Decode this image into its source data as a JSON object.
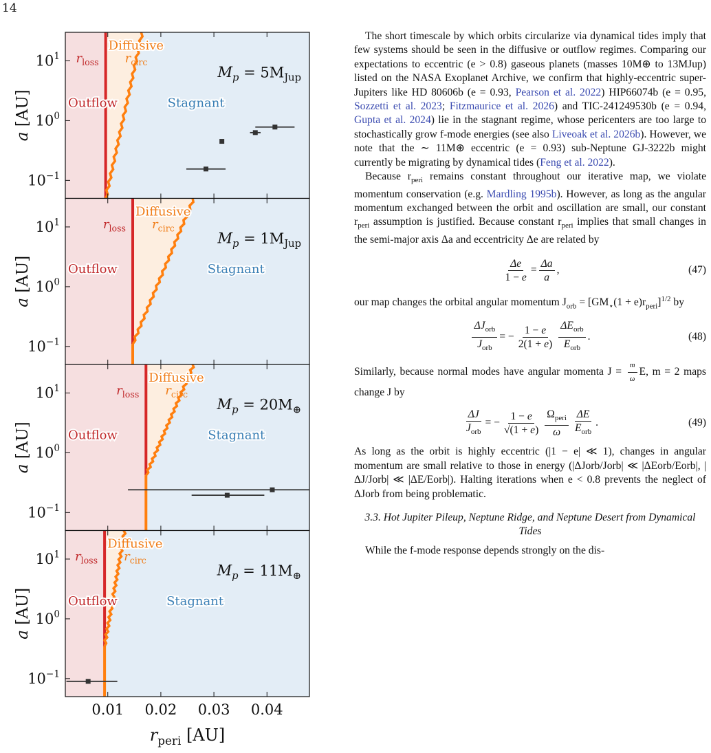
{
  "page_number": "14",
  "figure": {
    "panels": [
      {
        "mass_label": "M_p = 5M_Jup",
        "mass_text": "M",
        "mass_sub": "p",
        "mass_rhs": " = 5M",
        "mass_rhs_sub": "Jup",
        "rloss": 0.0096,
        "curve_start_a": 0.05,
        "curve_top_r": 0.0165,
        "points": [
          {
            "x": 0.0285,
            "y": 0.155,
            "xerr": [
              0.0248,
              0.0322
            ]
          },
          {
            "x": 0.0315,
            "y": 0.45,
            "xerr": null
          },
          {
            "x": 0.0378,
            "y": 0.63,
            "xerr": [
              0.0368,
              0.0388
            ]
          },
          {
            "x": 0.0415,
            "y": 0.78,
            "xerr": [
              0.0378,
              0.0452
            ]
          }
        ]
      },
      {
        "mass_label": "M_p = 1M_Jup",
        "mass_text": "M",
        "mass_sub": "p",
        "mass_rhs": " = 1M",
        "mass_rhs_sub": "Jup",
        "rloss": 0.0147,
        "curve_start_a": 0.11,
        "curve_top_r": 0.0262,
        "points": []
      },
      {
        "mass_label": "M_p = 20M_⊕",
        "mass_text": "M",
        "mass_sub": "p",
        "mass_rhs": " = 20M",
        "mass_rhs_sub": "⊕",
        "rloss": 0.0172,
        "curve_start_a": 0.42,
        "curve_top_r": 0.0262,
        "points": [
          {
            "x": 0.0325,
            "y": 0.195,
            "xerr": [
              0.0258,
              0.0395
            ]
          },
          {
            "x": 0.041,
            "y": 0.24,
            "xerr": [
              0.0138,
              0.048
            ]
          }
        ]
      },
      {
        "mass_label": "M_p = 11M_⊕",
        "mass_text": "M",
        "mass_sub": "p",
        "mass_rhs": " = 11M",
        "mass_rhs_sub": "⊕",
        "rloss": 0.0094,
        "curve_start_a": 0.35,
        "curve_top_r": 0.0132,
        "points": [
          {
            "x": 0.0063,
            "y": 0.09,
            "xerr": [
              0.0022,
              0.0118
            ]
          }
        ]
      }
    ],
    "region_labels": {
      "outflow": "Outflow",
      "stagnant": "Stagnant",
      "diffusive": "Diffusive",
      "rloss": "r",
      "rloss_sub": "loss",
      "rcirc": "r",
      "rcirc_sub": "circ"
    },
    "ylabel": "a [AU]",
    "ylabel_main": "a",
    "ylabel_unit": "[AU]",
    "xlabel_main": "r",
    "xlabel_sub": "peri",
    "xlabel_unit": "[AU]",
    "xticks": [
      "0.01",
      "0.02",
      "0.03",
      "0.04"
    ],
    "xtick_values": [
      0.01,
      0.02,
      0.03,
      0.04
    ],
    "yticks": [
      "10",
      "10",
      "10"
    ],
    "ytick_exps": [
      "1",
      "0",
      "−1"
    ],
    "yrange": [
      0.05,
      30
    ],
    "xrange": [
      0.002,
      0.048
    ],
    "colors": {
      "outflow": "#f6dfe0",
      "diffusive": "#fdeee0",
      "stagnant": "#e3edf6",
      "red": "#d62728",
      "orange": "#ff7f0e",
      "outflow_text": "#c0282a",
      "diffusive_text": "#f07d18",
      "stagnant_text": "#3a7fb5",
      "point": "#333333"
    }
  },
  "text": {
    "p1": "The short timescale by which orbits circularize via dynamical tides imply that few systems should be seen in the diffusive or outflow regimes. Comparing our expectations to eccentric (e > 0.8) gaseous planets (masses 10M⊕ to 13MJup) listed on the NASA Exoplanet Archive, we confirm that highly-eccentric super-Jupiters like HD 80606b (e = 0.93, ",
    "c1": "Pearson et al. 2022",
    "p1b": ") HIP66074b (e = 0.95, ",
    "c2": "Sozzetti et al. 2023",
    "p1c": "; ",
    "c3": "Fitzmaurice et al. 2026",
    "p1d": ") and TIC-241249530b (e = 0.94, ",
    "c4": "Gupta et al. 2024",
    "p1e": ") lie in the stagnant regime, whose pericenters are too large to stochastically grow f-mode energies (see also ",
    "c5": "Liveoak et al. 2026b",
    "p1f": "). However, we note that the ∼ 11M⊕ eccentric (e = 0.93) sub-Neptune GJ-3222b might currently be migrating by dynamical tides (",
    "c6": "Feng et al. 2022",
    "p1g": ").",
    "p2": "Because r",
    "p2sub": "peri",
    "p2b": " remains constant throughout our iterative map, we violate momentum conservation (e.g. ",
    "c7": "Mardling 1995b",
    "p2c": "). However, as long as the angular momentum exchanged between the orbit and oscillation are small, our constant r",
    "p2d": " assumption is justified. Because constant r",
    "p2e": " implies that small changes in the semi-major axis Δa and eccentricity Δe are related by",
    "eq47_num": "(47)",
    "p3": "our map changes the orbital angular momentum J",
    "p3sub": "orb",
    "p3b": " = [GM",
    "p3c": "(1 + e)r",
    "p3d": "]",
    "p3e": " by",
    "eq48_num": "(48)",
    "p4": "Similarly, because normal modes have angular momenta J = ",
    "p4b": "E, m = 2 maps change J by",
    "eq49_num": "(49)",
    "p5": "As long as the orbit is highly eccentric (|1 − e| ≪ 1), changes in angular momentum are small relative to those in energy (|ΔJorb/Jorb| ≪ |ΔEorb/Eorb|, |ΔJ/Jorb| ≪ |ΔE/Eorb|). Halting iterations when e < 0.8 prevents the neglect of ΔJorb from being problematic.",
    "section": "3.3. Hot Jupiter Pileup, Neptune Ridge, and Neptune Desert from Dynamical Tides",
    "p6": "While the f-mode response depends strongly on the dis-"
  }
}
